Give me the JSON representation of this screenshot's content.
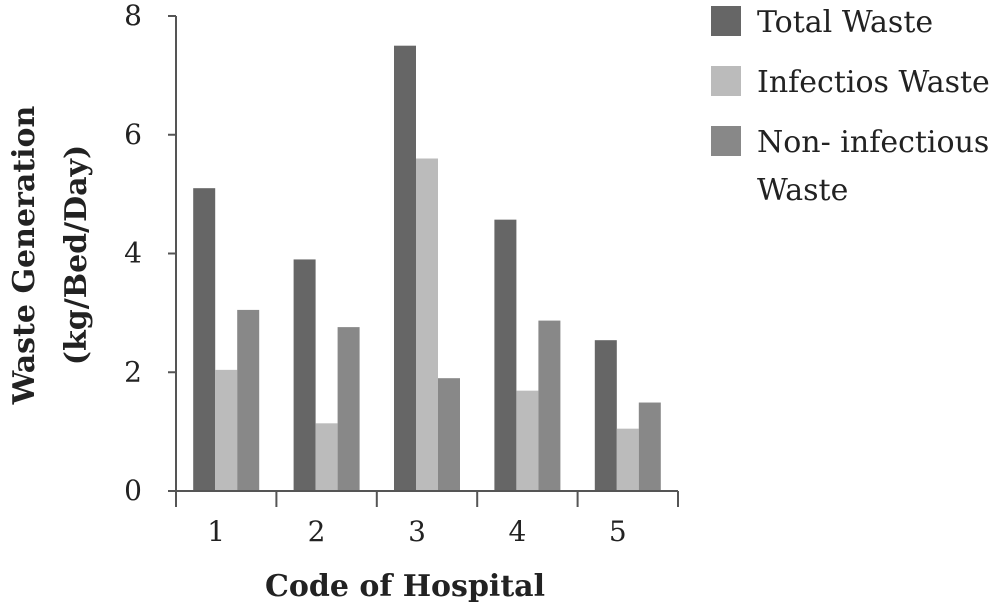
{
  "chart_data": {
    "type": "bar",
    "categories": [
      "1",
      "2",
      "3",
      "4",
      "5"
    ],
    "series": [
      {
        "name": "Total  Waste",
        "values": [
          5.1,
          3.9,
          7.5,
          4.57,
          2.54
        ],
        "color": "#666666"
      },
      {
        "name": "Infectios Waste",
        "values": [
          2.04,
          1.14,
          5.6,
          1.69,
          1.05
        ],
        "color": "#bbbbbb"
      },
      {
        "name": "Non- infectious Waste",
        "values": [
          3.05,
          2.76,
          1.9,
          2.87,
          1.49
        ],
        "color": "#888888"
      }
    ],
    "title": "",
    "xlabel": "Code of Hospital",
    "ylabel_lines": [
      "Waste Generation",
      "(kg/Bed/Day)"
    ],
    "ylim": [
      0,
      8
    ],
    "yticks": [
      "0",
      "2",
      "4",
      "6",
      "8"
    ],
    "grid": false,
    "legend_position": "top-right",
    "legend_lines": [
      [
        "Total  Waste"
      ],
      [
        "Infectios Waste"
      ],
      [
        "Non- infectious",
        "Waste"
      ]
    ]
  }
}
